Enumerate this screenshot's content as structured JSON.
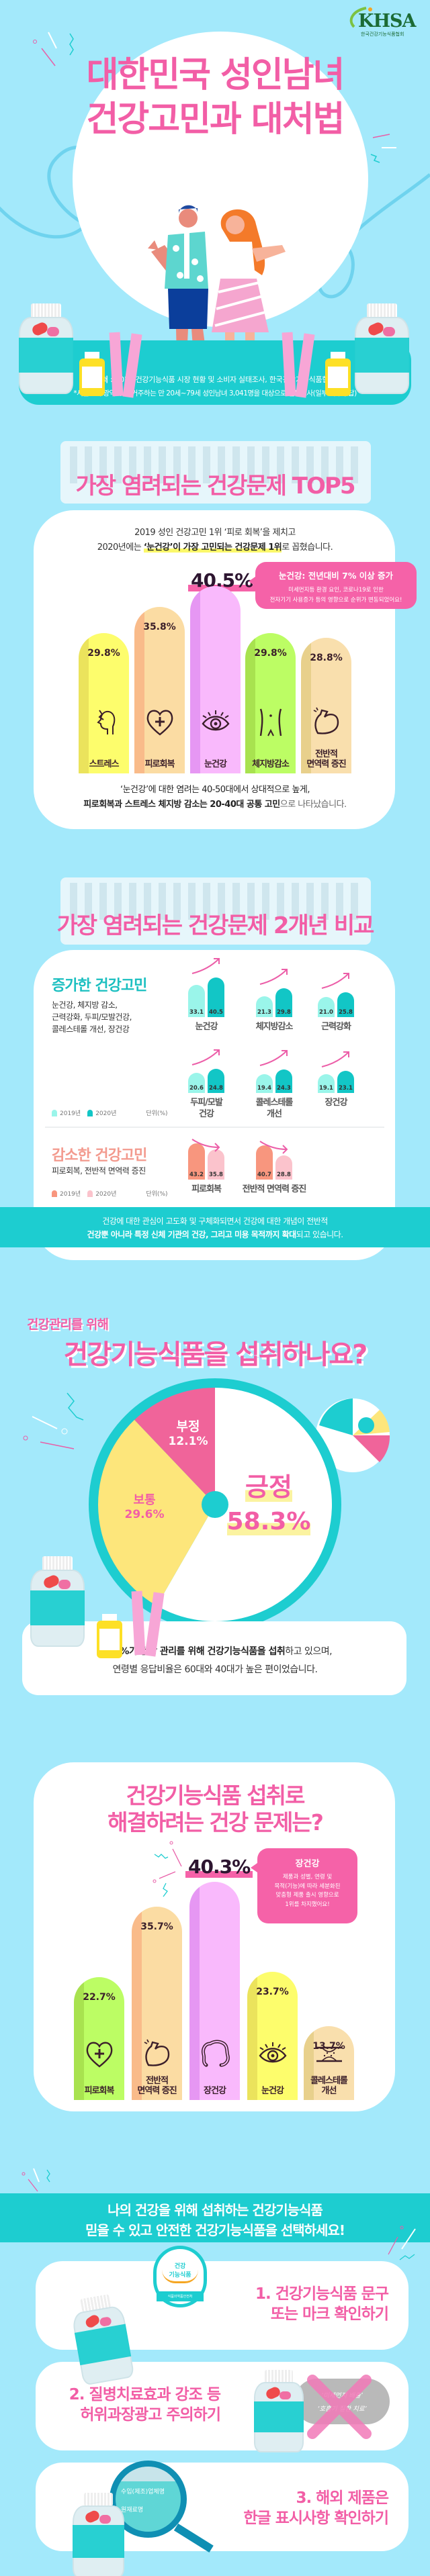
{
  "brand": {
    "logo_text": "KHSA",
    "logo_subtitle": "한국건강기능식품협회"
  },
  "hero": {
    "title_line1": "대한민국 성인남녀",
    "title_line2": "건강고민과 대처법"
  },
  "source": {
    "label": "출처 :",
    "text": "2020 건강기능식품 시장 현황 및 소비자 실태조사, 한국건강기능식품협회",
    "note": "*서울 5대 광역시 내 거주하는 만 20세~79세 성인남녀 3,041명을 대상으로 설문조사(일부 복수응답)"
  },
  "top5": {
    "title": "가장 염려되는 건강문제 TOP5",
    "intro_line1": "2019 성인 건강고민 1위 ‘피로 회복’을 제치고",
    "intro_line2_pre": "2020년에는 ",
    "intro_line2_bold": "‘눈건강’이 가장 고민되는 건강문제 1위",
    "intro_line2_post": "로 꼽혔습니다.",
    "highlight_value": "40.5%",
    "callout_title": "눈건강: 전년대비 7% 이상 증가",
    "callout_line1": "미세먼지등 환경 요인, 코로나19로 인한",
    "callout_line2": "전자기기 사용증가 등의 영향으로 순위가 변동되었어요!",
    "footer_line1": "‘눈건강’에 대한 염려는 40-50대에서 상대적으로 높게,",
    "footer_line2_bold": "피로회복과 스트레스 체지방 감소는 20-40대 공통 고민",
    "footer_line2_post": "으로 나타났습니다."
  },
  "compare": {
    "title": "가장 염려되는 건강문제 2개년 비교",
    "increased": {
      "title": "증가한 건강고민",
      "desc_line1": "눈건강, 체지방 감소,",
      "desc_line2": "근력강화, 두피/모발건강,",
      "desc_line3": "콜레스테롤 개선, 장건강",
      "legend_2019": "2019년",
      "legend_2020": "2020년",
      "unit": "단위(%)",
      "colors": {
        "y2019": "#9af5ea",
        "y2020": "#12c6c6"
      }
    },
    "decreased": {
      "title": "감소한 건강고민",
      "desc_line1": "피로회복, 전반적 면역력 증진",
      "legend_2019": "2019년",
      "legend_2020": "2020년",
      "unit": "단위(%)",
      "colors": {
        "y2019": "#f8967e",
        "y2020": "#fbc3cc"
      }
    },
    "band_line1": "건강에 대한 관심이 고도화 및 구체화되면서 건강에 대한 개념이 전반적",
    "band_line2_bold": "건강뿐 아니라 특정 신체 기관의 건강, 그리고 미용 목적까지 확대",
    "band_line2_post": "되고 있습니다."
  },
  "intake": {
    "subtitle": "건강관리를 위해",
    "title": "건강기능식품을 섭취하나요?",
    "summary_bold": "58.3%가 건강 관리를 위해 건강기능식품을 섭취",
    "summary_post": "하고 있으며,",
    "summary_line2": "연령별 응답비율은 60대와 40대가 높은 편이었습니다."
  },
  "solve": {
    "title_line1": "건강기능식품 섭취로",
    "title_line2": "해결하려는 건강 문제는?",
    "highlight_value": "40.3%",
    "callout_title": "장건강",
    "callout_lines": [
      "제품과 성별, 연령 및",
      "목적(기능)에 따라 세분화된",
      "맞춤형 제품 출시 영향으로",
      "1위를 차지했어요!"
    ]
  },
  "tips": {
    "banner_line1": "나의 건강을 위해 섭취하는 건강기능식품",
    "banner_line2": "믿을 수 있고 안전한 건강기능식품을 선택하세요!",
    "mark_line1": "건강",
    "mark_line2": "기능식품",
    "mark_issuer": "식품의약품안전처",
    "ad_line1": "‘미세먼지 배출’",
    "ad_line2": "‘호흡기 질환 치료’",
    "magnifier_line1": "수입(제조)업체명",
    "magnifier_line2": "원재료명",
    "steps": [
      {
        "line1": "1. 건강기능식품 문구",
        "line2": "또는 마크 확인하기"
      },
      {
        "line1": "2. 질병치료효과 강조 등",
        "line2": "허위과장광고 주의하기"
      },
      {
        "line1": "3. 해외 제품은",
        "line2": "한글 표시사항 확인하기"
      }
    ]
  },
  "colors": {
    "background": "#a3e9fb",
    "title_pink": "#f25ea6",
    "teal": "#1dcdd0"
  },
  "chart_data": [
    {
      "type": "bar",
      "title": "가장 염려되는 건강문제 TOP5",
      "categories": [
        "스트레스",
        "피로회복",
        "눈건강",
        "체지방감소",
        "전반적\n면역력 증진"
      ],
      "values": [
        29.8,
        35.8,
        40.5,
        29.8,
        28.8
      ],
      "value_labels": [
        "29.8%",
        "35.8%",
        "40.5%",
        "29.8%",
        "28.8%"
      ],
      "icons": [
        "head-stress",
        "heart-plus",
        "eye",
        "belly",
        "muscle-arm"
      ],
      "colors": [
        [
          "#fdfd6c",
          "#ebe35c"
        ],
        [
          "#fbdca3",
          "#f9bb8a"
        ],
        [
          "#f9b9fc",
          "#e697f3"
        ],
        [
          "#bcfd64",
          "#a8e24f"
        ],
        [
          "#f9dfad",
          "#e8d08c"
        ]
      ]
    },
    {
      "type": "bar",
      "title": "증가한 건강고민",
      "categories": [
        "눈건강",
        "체지방감소",
        "근력강화",
        "두피/모발\n건강",
        "콜레스테롤\n개선",
        "장건강"
      ],
      "series": [
        {
          "name": "2019년",
          "values": [
            33.1,
            21.3,
            21.0,
            20.6,
            19.4,
            19.1
          ]
        },
        {
          "name": "2020년",
          "values": [
            40.5,
            29.8,
            25.8,
            24.8,
            24.3,
            23.1
          ]
        }
      ],
      "unit": "단위(%)"
    },
    {
      "type": "bar",
      "title": "감소한 건강고민",
      "categories": [
        "피로회복",
        "전반적 면역력 증진"
      ],
      "series": [
        {
          "name": "2019년",
          "values": [
            43.2,
            40.7
          ]
        },
        {
          "name": "2020년",
          "values": [
            35.8,
            28.8
          ]
        }
      ],
      "unit": "단위(%)"
    },
    {
      "type": "pie",
      "title": "건강기능식품을 섭취하나요?",
      "slices": [
        {
          "label": "긍정",
          "value": 58.3,
          "value_label": "58.3%",
          "color": "#ffffff"
        },
        {
          "label": "보통",
          "value": 29.6,
          "value_label": "29.6%",
          "color": "#fde67b"
        },
        {
          "label": "부정",
          "value": 12.1,
          "value_label": "12.1%",
          "color": "#f0649a"
        }
      ]
    },
    {
      "type": "bar",
      "title": "건강기능식품 섭취로 해결하려는 건강 문제는?",
      "categories": [
        "피로회복",
        "전반적\n면역력 증진",
        "장건강",
        "눈건강",
        "콜레스테롤\n개선"
      ],
      "values": [
        22.7,
        35.7,
        40.3,
        23.7,
        13.7
      ],
      "value_labels": [
        "22.7%",
        "35.7%",
        "40.3%",
        "23.7%",
        "13.7%"
      ],
      "icons": [
        "heart-plus",
        "muscle-arm",
        "intestine",
        "eye",
        "artery"
      ],
      "colors": [
        [
          "#bcfd64",
          "#a8e24f"
        ],
        [
          "#fbdca3",
          "#f9bb8a"
        ],
        [
          "#f9b9fc",
          "#e697f3"
        ],
        [
          "#fdfd6c",
          "#ebe35c"
        ],
        [
          "#f9dfad",
          "#e8d08c"
        ]
      ]
    }
  ]
}
